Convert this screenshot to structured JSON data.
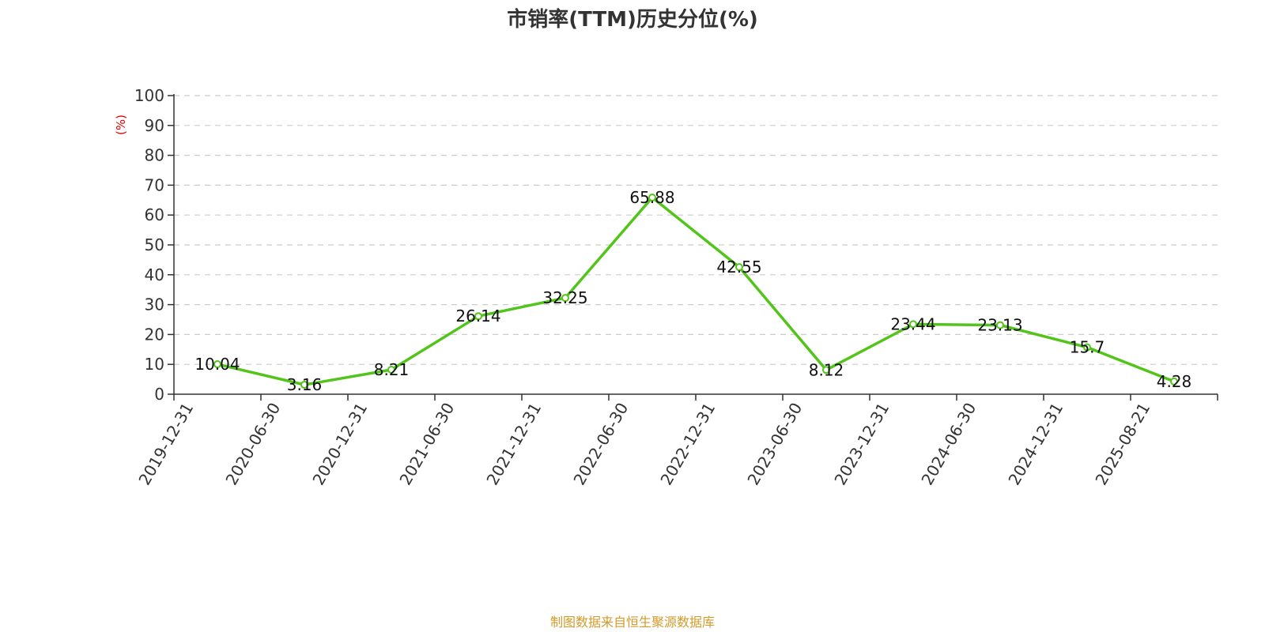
{
  "chart_data": {
    "type": "line",
    "title": "市销率(TTM)历史分位(%)",
    "ylabel": "(%)",
    "xlabel": "",
    "categories": [
      "2019-12-31",
      "2020-06-30",
      "2020-12-31",
      "2021-06-30",
      "2021-12-31",
      "2022-06-30",
      "2022-12-31",
      "2023-06-30",
      "2023-12-31",
      "2024-06-30",
      "2024-12-31",
      "2025-08-21"
    ],
    "series": [
      {
        "values": [
          10.04,
          3.16,
          8.21,
          26.14,
          32.25,
          65.88,
          42.55,
          8.12,
          23.44,
          23.13,
          15.7,
          4.28
        ]
      }
    ],
    "ylim": [
      0,
      100
    ],
    "yticks": [
      0,
      10,
      20,
      30,
      40,
      50,
      60,
      70,
      80,
      90,
      100
    ],
    "grid": true,
    "legend": "none",
    "colors": {
      "line": "#52c41a",
      "unit_label": "#e60000",
      "source": "#d49a2a",
      "grid": "#cccccc"
    }
  },
  "source_note": "制图数据来自恒生聚源数据库"
}
